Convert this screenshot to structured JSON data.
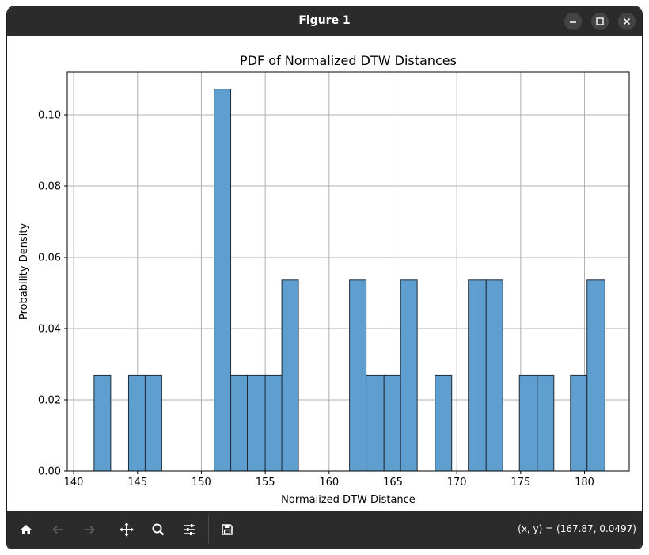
{
  "window": {
    "title": "Figure 1",
    "minimize_icon": "minimize-icon",
    "maximize_icon": "maximize-icon",
    "close_icon": "close-icon"
  },
  "toolbar": {
    "icons": [
      "home-icon",
      "back-icon",
      "forward-icon",
      "pan-icon",
      "zoom-icon",
      "configure-subplots-icon",
      "save-icon"
    ],
    "coords": "(x, y) = (167.87, 0.0497)"
  },
  "chart_data": {
    "type": "bar",
    "title": "PDF of Normalized DTW Distances",
    "xlabel": "Normalized DTW Distance",
    "ylabel": "Probability Density",
    "xlim": [
      139.5,
      183.5
    ],
    "ylim": [
      0,
      0.112
    ],
    "xticks": [
      140,
      145,
      150,
      155,
      160,
      165,
      170,
      175,
      180
    ],
    "xtick_labels": [
      "140",
      "145",
      "150",
      "155",
      "160",
      "165",
      "170",
      "175",
      "180"
    ],
    "yticks": [
      0,
      0.02,
      0.04,
      0.06,
      0.08,
      0.1
    ],
    "ytick_labels": [
      "0.00",
      "0.02",
      "0.04",
      "0.06",
      "0.08",
      "0.10"
    ],
    "grid": true,
    "bar_color": "#5f9fcf",
    "edge_color": "#1f2a35",
    "bins": [
      {
        "x0": 141.6,
        "x1": 142.9,
        "density": 0.0268
      },
      {
        "x0": 144.3,
        "x1": 145.6,
        "density": 0.0268
      },
      {
        "x0": 145.6,
        "x1": 146.9,
        "density": 0.0268
      },
      {
        "x0": 151.0,
        "x1": 152.3,
        "density": 0.1072
      },
      {
        "x0": 152.3,
        "x1": 153.6,
        "density": 0.0268
      },
      {
        "x0": 153.6,
        "x1": 155.0,
        "density": 0.0268
      },
      {
        "x0": 155.0,
        "x1": 156.3,
        "density": 0.0268
      },
      {
        "x0": 156.3,
        "x1": 157.6,
        "density": 0.0536
      },
      {
        "x0": 161.6,
        "x1": 162.9,
        "density": 0.0536
      },
      {
        "x0": 162.9,
        "x1": 164.3,
        "density": 0.0268
      },
      {
        "x0": 164.3,
        "x1": 165.6,
        "density": 0.0268
      },
      {
        "x0": 165.6,
        "x1": 166.9,
        "density": 0.0536
      },
      {
        "x0": 168.3,
        "x1": 169.6,
        "density": 0.0268
      },
      {
        "x0": 170.9,
        "x1": 172.3,
        "density": 0.0536
      },
      {
        "x0": 172.3,
        "x1": 173.6,
        "density": 0.0536
      },
      {
        "x0": 174.9,
        "x1": 176.3,
        "density": 0.0268
      },
      {
        "x0": 176.3,
        "x1": 177.6,
        "density": 0.0268
      },
      {
        "x0": 178.9,
        "x1": 180.2,
        "density": 0.0268
      },
      {
        "x0": 180.2,
        "x1": 181.6,
        "density": 0.0536
      }
    ]
  }
}
